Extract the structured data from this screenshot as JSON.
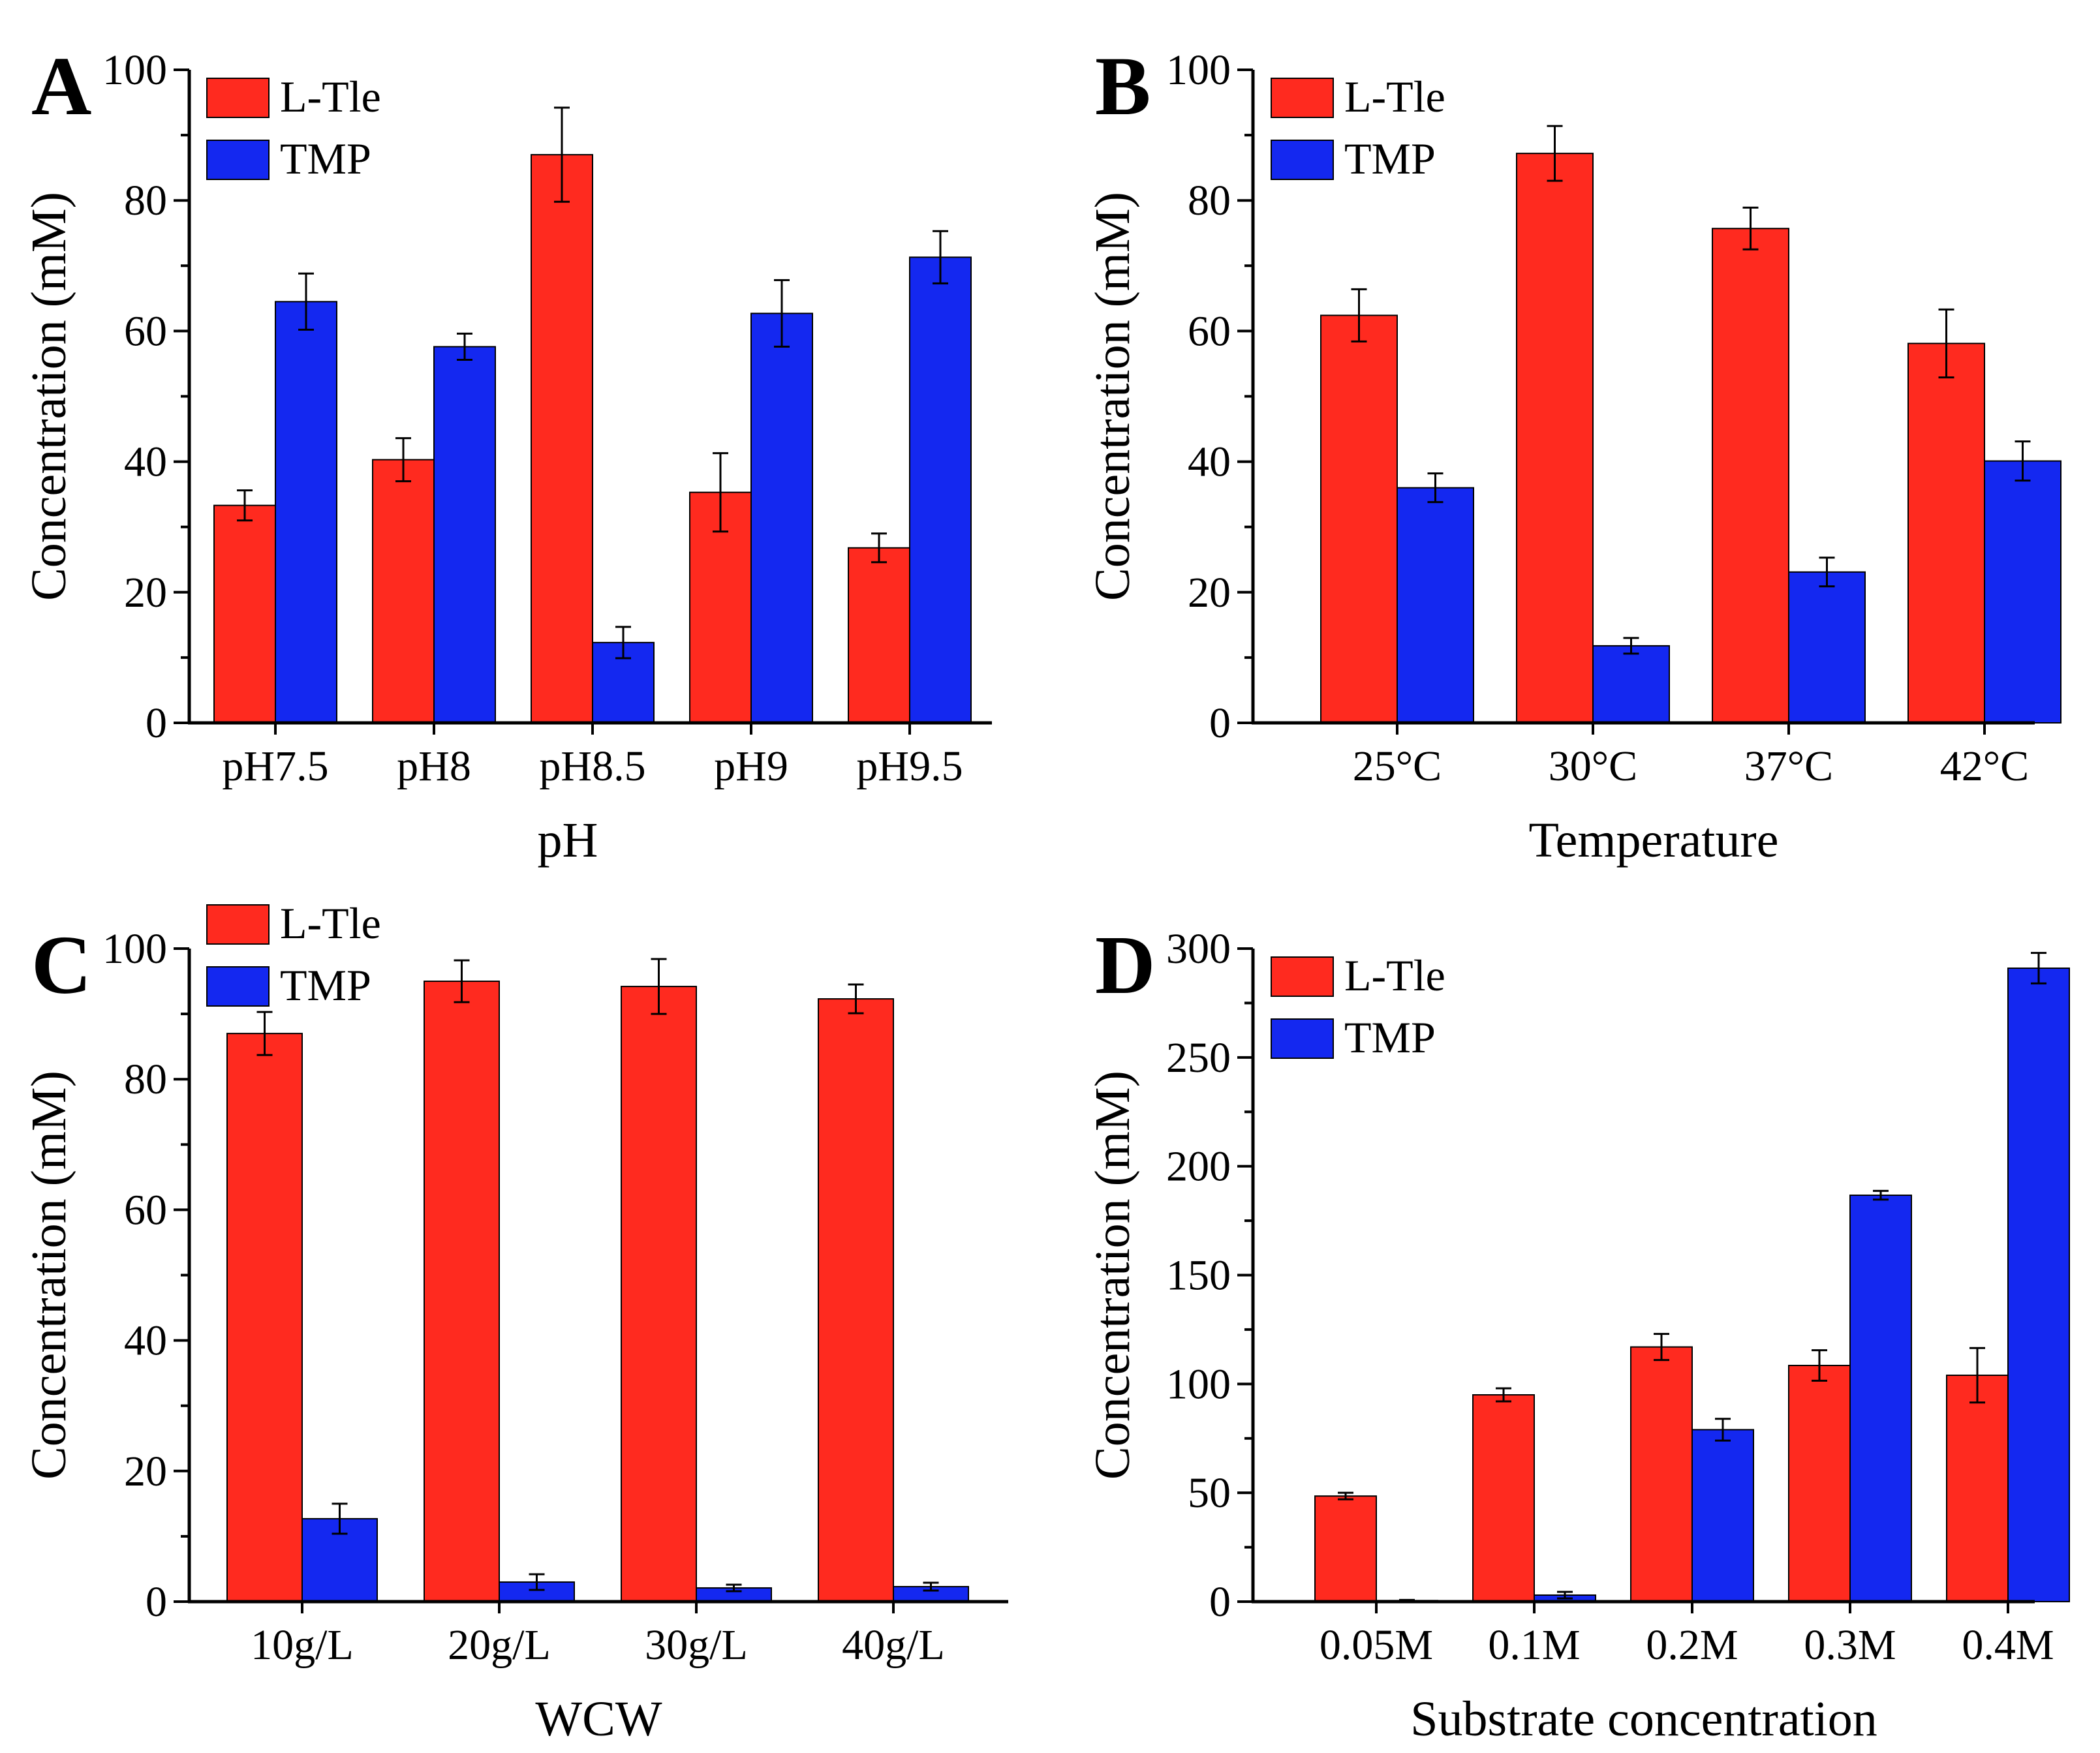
{
  "colors": {
    "series1": "#ff2a1f",
    "series2": "#1428f0",
    "axis": "#000000",
    "background": "#ffffff"
  },
  "chart_data": [
    {
      "panel_label": "A",
      "type": "bar",
      "title": "",
      "xlabel": "pH",
      "ylabel": "Concentration (mM)",
      "ylim": [
        0,
        100
      ],
      "yticks": [
        "0",
        "20",
        "40",
        "60",
        "80",
        "100"
      ],
      "categories": [
        "pH7.5",
        "pH8",
        "pH8.5",
        "pH9",
        "pH9.5"
      ],
      "series": [
        {
          "name": "L-Tle",
          "values": [
            33.3,
            40.3,
            87.0,
            35.3,
            26.8
          ],
          "errors": [
            2.3,
            3.3,
            7.2,
            6.0,
            2.2
          ]
        },
        {
          "name": "TMP",
          "values": [
            64.5,
            57.6,
            12.3,
            62.7,
            71.3
          ],
          "errors": [
            4.3,
            2.0,
            2.4,
            5.1,
            4.0
          ]
        }
      ],
      "legend": "top-left",
      "grid": false
    },
    {
      "panel_label": "B",
      "type": "bar",
      "title": "",
      "xlabel": "Temperature",
      "ylabel": "Concentration (mM)",
      "ylim": [
        0,
        100
      ],
      "yticks": [
        "0",
        "20",
        "40",
        "60",
        "80",
        "100"
      ],
      "categories": [
        "25°C",
        "30°C",
        "37°C",
        "42°C"
      ],
      "series": [
        {
          "name": "L-Tle",
          "values": [
            62.4,
            87.2,
            75.7,
            58.1
          ],
          "errors": [
            4.0,
            4.2,
            3.2,
            5.2
          ]
        },
        {
          "name": "TMP",
          "values": [
            36.0,
            11.8,
            23.1,
            40.1
          ],
          "errors": [
            2.2,
            1.2,
            2.2,
            3.0
          ]
        }
      ],
      "legend": "top-left",
      "grid": false
    },
    {
      "panel_label": "C",
      "type": "bar",
      "title": "",
      "xlabel": "WCW",
      "ylabel": "Concentration (mM)",
      "ylim": [
        0,
        100
      ],
      "yticks": [
        "0",
        "20",
        "40",
        "60",
        "80",
        "100"
      ],
      "categories": [
        "10g/L",
        "20g/L",
        "30g/L",
        "40g/L"
      ],
      "series": [
        {
          "name": "L-Tle",
          "values": [
            87.0,
            95.0,
            94.2,
            92.3
          ],
          "errors": [
            3.3,
            3.2,
            4.2,
            2.2
          ]
        },
        {
          "name": "TMP",
          "values": [
            12.7,
            3.0,
            2.1,
            2.3
          ],
          "errors": [
            2.3,
            1.2,
            0.5,
            0.6
          ]
        }
      ],
      "legend": "top-left",
      "grid": false
    },
    {
      "panel_label": "D",
      "type": "bar",
      "title": "",
      "xlabel": "Substrate concentration",
      "ylabel": "Concentration (mM)",
      "ylim": [
        0,
        300
      ],
      "yticks": [
        "0",
        "50",
        "100",
        "150",
        "200",
        "250",
        "300"
      ],
      "categories": [
        "0.05M",
        "0.1M",
        "0.2M",
        "0.3M",
        "0.4M"
      ],
      "series": [
        {
          "name": "L-Tle",
          "values": [
            48.5,
            95.0,
            117.0,
            108.5,
            104.0
          ],
          "errors": [
            1.5,
            3.0,
            6.0,
            7.0,
            12.5
          ]
        },
        {
          "name": "TMP",
          "values": [
            0.5,
            3.0,
            79.0,
            186.7,
            291.0
          ],
          "errors": [
            0.3,
            1.5,
            5.0,
            2.0,
            7.0
          ]
        }
      ],
      "legend": "top-left",
      "grid": false
    }
  ]
}
